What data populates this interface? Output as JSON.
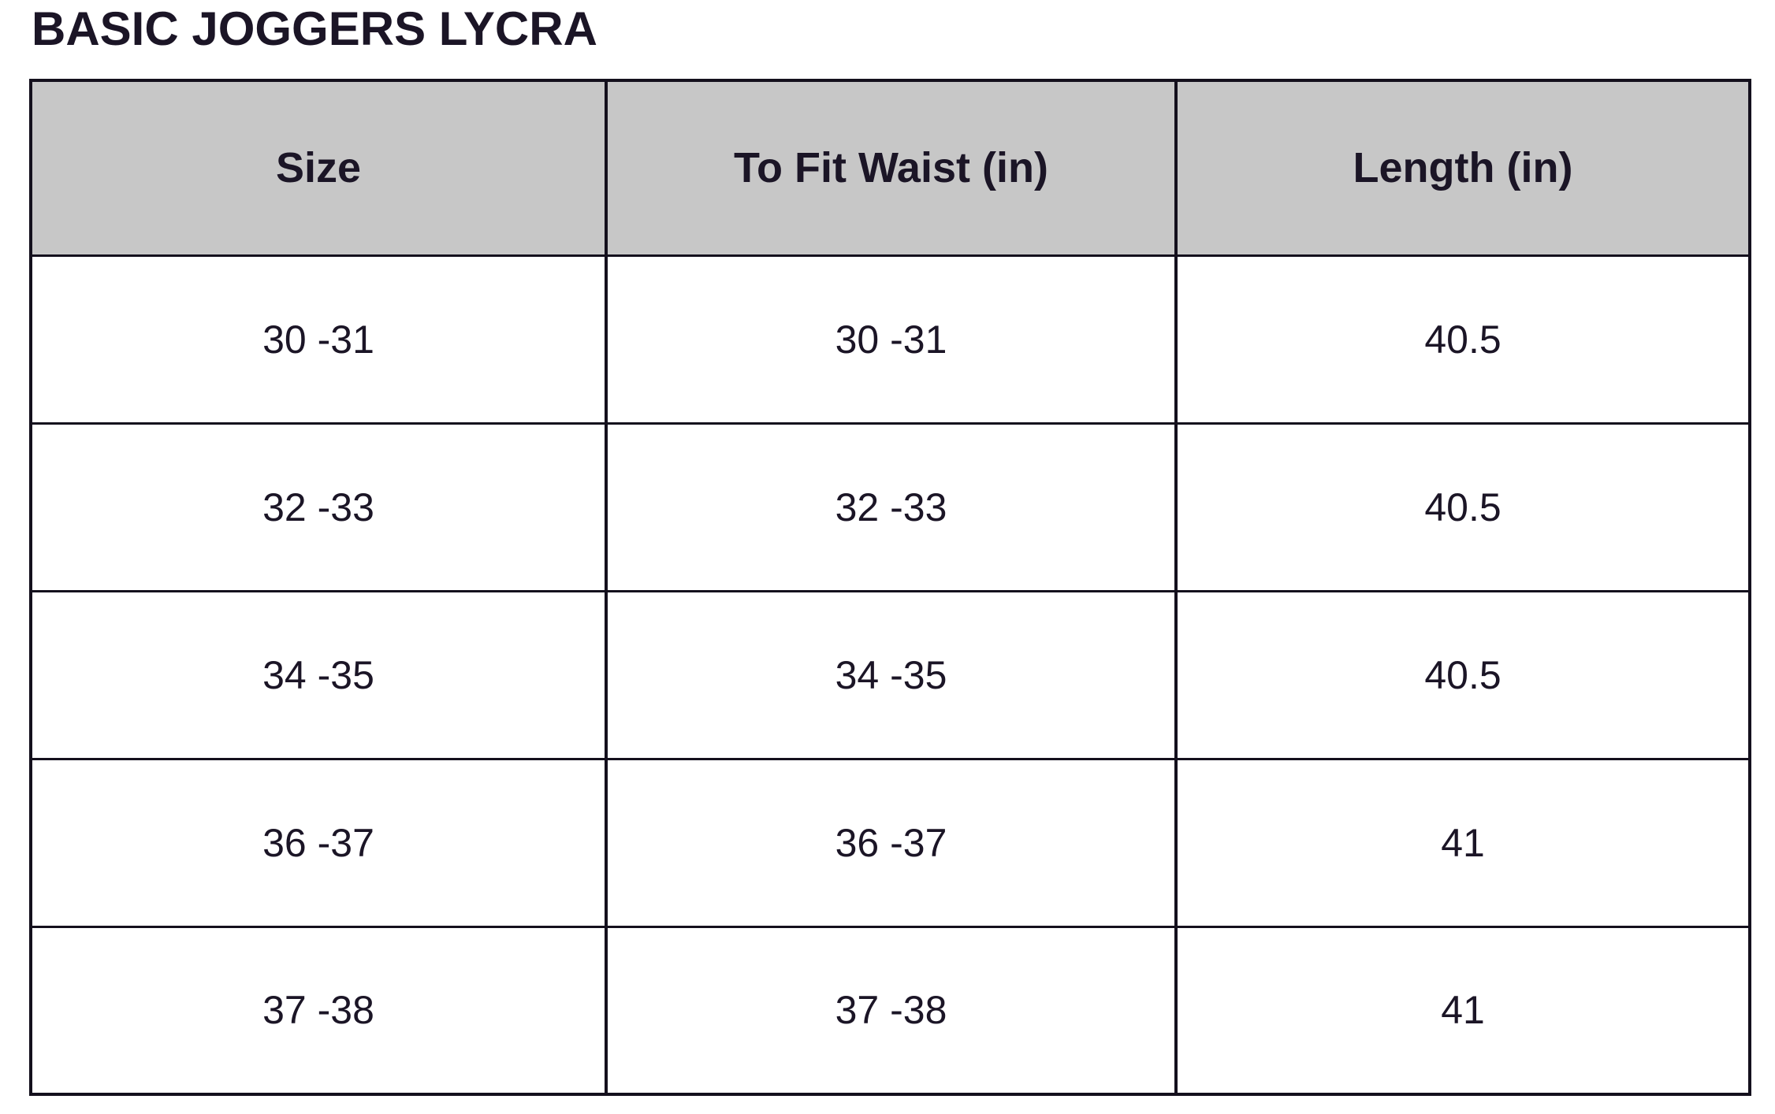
{
  "page": {
    "title": "BASIC JOGGERS LYCRA"
  },
  "table": {
    "columns": [
      "Size",
      "To Fit Waist (in)",
      "Length (in)"
    ],
    "rows": [
      [
        "30 -31",
        "30 -31",
        "40.5"
      ],
      [
        "32 -33",
        "32 -33",
        "40.5"
      ],
      [
        "34 -35",
        "34 -35",
        "40.5"
      ],
      [
        "36 -37",
        "36 -37",
        "41"
      ],
      [
        "37 -38",
        "37 -38",
        "41"
      ]
    ]
  },
  "colors": {
    "header_bg": "#c7c7c7",
    "border": "#14101d",
    "text": "#1b1526",
    "page_bg": "#ffffff"
  }
}
